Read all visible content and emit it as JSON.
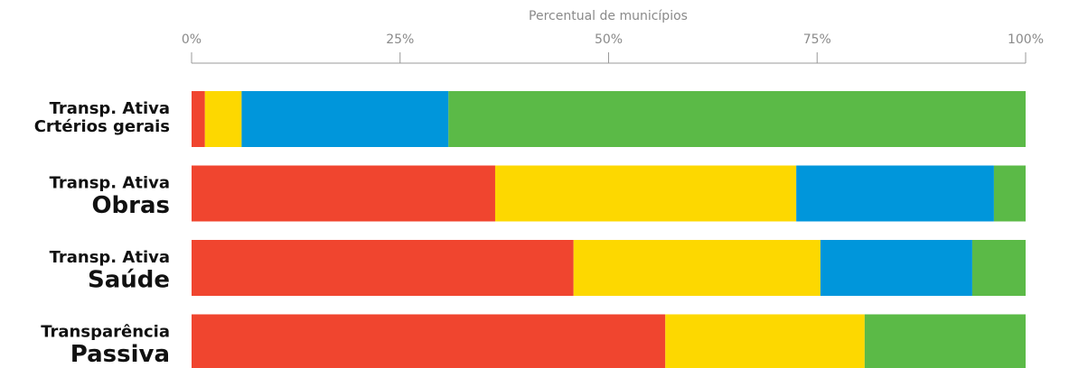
{
  "chart_data": {
    "type": "stacked-barh",
    "xlabel": "Percentual de municípios",
    "categories": [
      [
        "Transp. Ativa",
        "Crtérios gerais"
      ],
      [
        "Transp. Ativa",
        "Obras"
      ],
      [
        "Transp. Ativa",
        "Saúde"
      ],
      [
        "Transparência",
        "Passiva"
      ]
    ],
    "series": [
      {
        "color": "#f0452f",
        "values": [
          1.6,
          36.4,
          45.8,
          56.8
        ]
      },
      {
        "color": "#fdd800",
        "values": [
          4.4,
          36.1,
          29.6,
          23.9
        ]
      },
      {
        "color": "#0096db",
        "values": [
          24.8,
          23.7,
          18.2,
          0
        ]
      },
      {
        "color": "#5bba47",
        "values": [
          69.2,
          3.8,
          6.4,
          19.3
        ]
      }
    ],
    "xlim": [
      0,
      100
    ],
    "xticks": [
      {
        "value": 0,
        "label": "0%"
      },
      {
        "value": 25,
        "label": "25%"
      },
      {
        "value": 50,
        "label": "50%"
      },
      {
        "value": 75,
        "label": "75%"
      },
      {
        "value": 100,
        "label": "100%"
      }
    ]
  }
}
